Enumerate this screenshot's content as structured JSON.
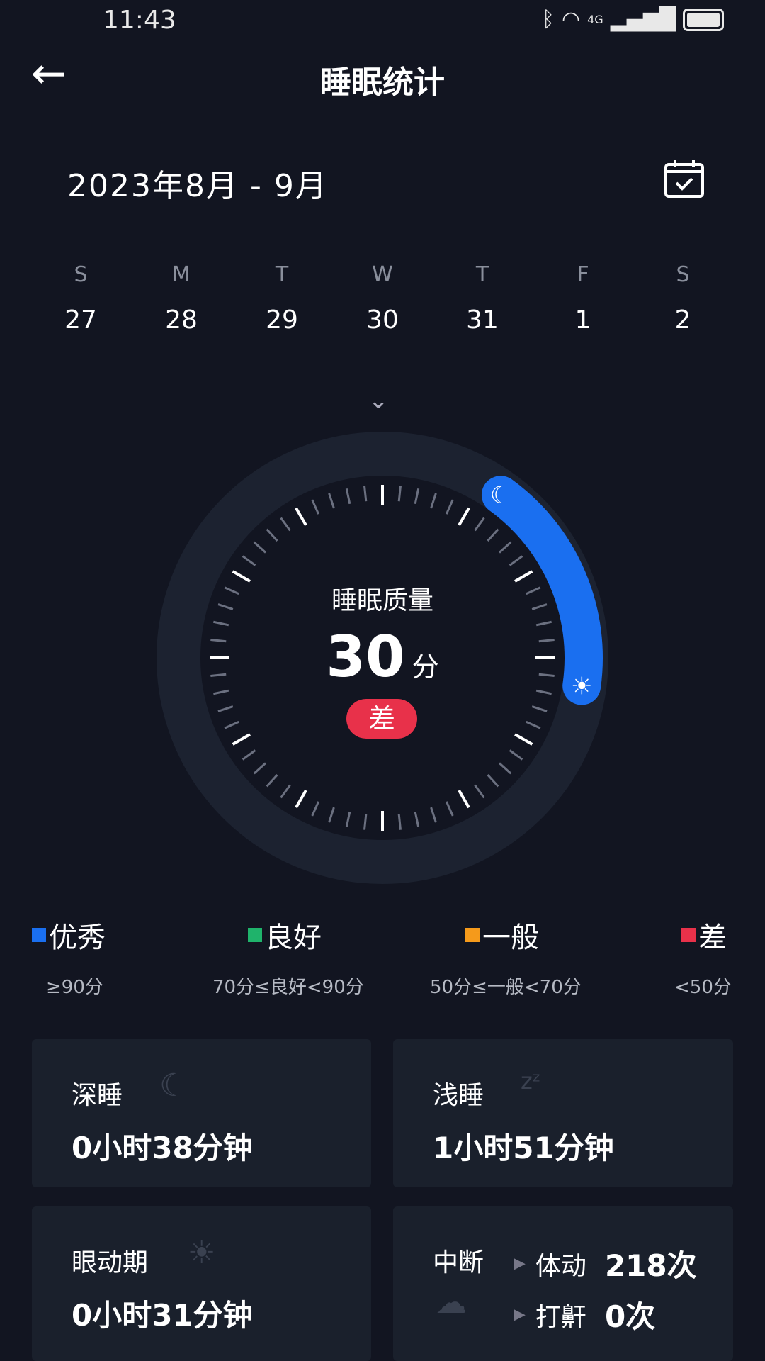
{
  "status_bar": {
    "time": "11:43",
    "network": "4G"
  },
  "header": {
    "title": "睡眠统计",
    "back_icon": "arrow-left-icon"
  },
  "date_range": "2023年8月 - 9月",
  "week": [
    {
      "weekday": "S",
      "day": "27"
    },
    {
      "weekday": "M",
      "day": "28"
    },
    {
      "weekday": "T",
      "day": "29"
    },
    {
      "weekday": "W",
      "day": "30"
    },
    {
      "weekday": "T",
      "day": "31"
    },
    {
      "weekday": "F",
      "day": "1"
    },
    {
      "weekday": "S",
      "day": "2"
    }
  ],
  "gauge": {
    "label": "睡眠质量",
    "score": "30",
    "unit": "分",
    "rating": "差",
    "rating_color": "#e8314a",
    "arc_color": "#1a6ff0"
  },
  "legend": [
    {
      "label": "优秀",
      "range": "≥90分",
      "color": "#1a6ff0"
    },
    {
      "label": "良好",
      "range": "70分≤良好<90分",
      "color": "#1fb36b"
    },
    {
      "label": "一般",
      "range": "50分≤一般<70分",
      "color": "#f59a1b"
    },
    {
      "label": "差",
      "range": "<50分",
      "color": "#e8314a"
    }
  ],
  "cards": {
    "deep": {
      "title": "深睡",
      "value": "0小时38分钟"
    },
    "light": {
      "title": "浅睡",
      "value": "1小时51分钟"
    },
    "rem": {
      "title": "眼动期",
      "value": "0小时31分钟"
    },
    "interrupt": {
      "title": "中断",
      "movement_label": "体动",
      "movement_value": "218次",
      "snore_label": "打鼾",
      "snore_value": "0次"
    }
  }
}
